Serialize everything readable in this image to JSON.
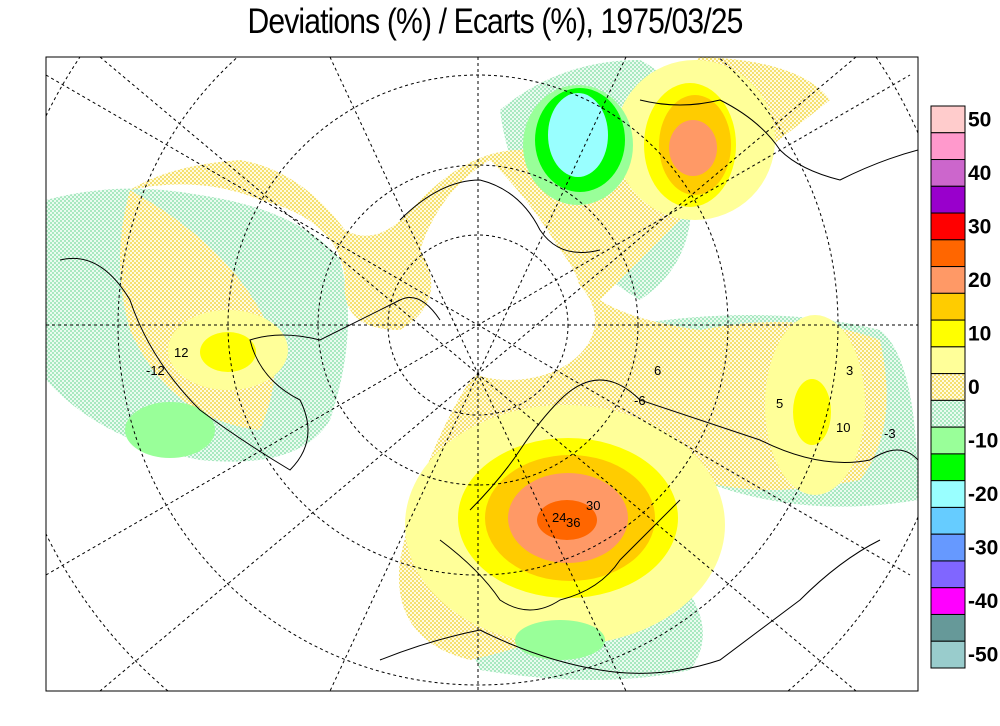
{
  "title": "Deviations (%) / Ecarts (%), 1975/03/25",
  "legend": {
    "labels": [
      "50",
      "40",
      "30",
      "20",
      "10",
      "0",
      "-10",
      "-20",
      "-30",
      "-40",
      "-50"
    ],
    "bins": [
      {
        "color": "#ffcccc"
      },
      {
        "color": "#ff99cc"
      },
      {
        "color": "#cc66cc"
      },
      {
        "color": "#9900cc"
      },
      {
        "color": "#ff0000"
      },
      {
        "color": "#ff6600"
      },
      {
        "color": "#ff9966"
      },
      {
        "color": "#ffcc00"
      },
      {
        "color": "#ffff00"
      },
      {
        "color": "#ffff99"
      },
      {
        "color": "#ffff66",
        "stippled": true
      },
      {
        "color": "#99ddaa",
        "stippled": true
      },
      {
        "color": "#99ff99"
      },
      {
        "color": "#00ff00"
      },
      {
        "color": "#99ffff"
      },
      {
        "color": "#66ccff"
      },
      {
        "color": "#6699ff"
      },
      {
        "color": "#8066ff"
      },
      {
        "color": "#ff00ff"
      },
      {
        "color": "#669999"
      },
      {
        "color": "#99cccc"
      }
    ]
  },
  "contour_labels": [
    "24",
    "36",
    "30",
    "12",
    "-12",
    "5",
    "10",
    "3",
    "-3",
    "6",
    "-6"
  ],
  "map": {
    "projection": "polar stereographic, Northern Hemisphere",
    "grid": true
  }
}
